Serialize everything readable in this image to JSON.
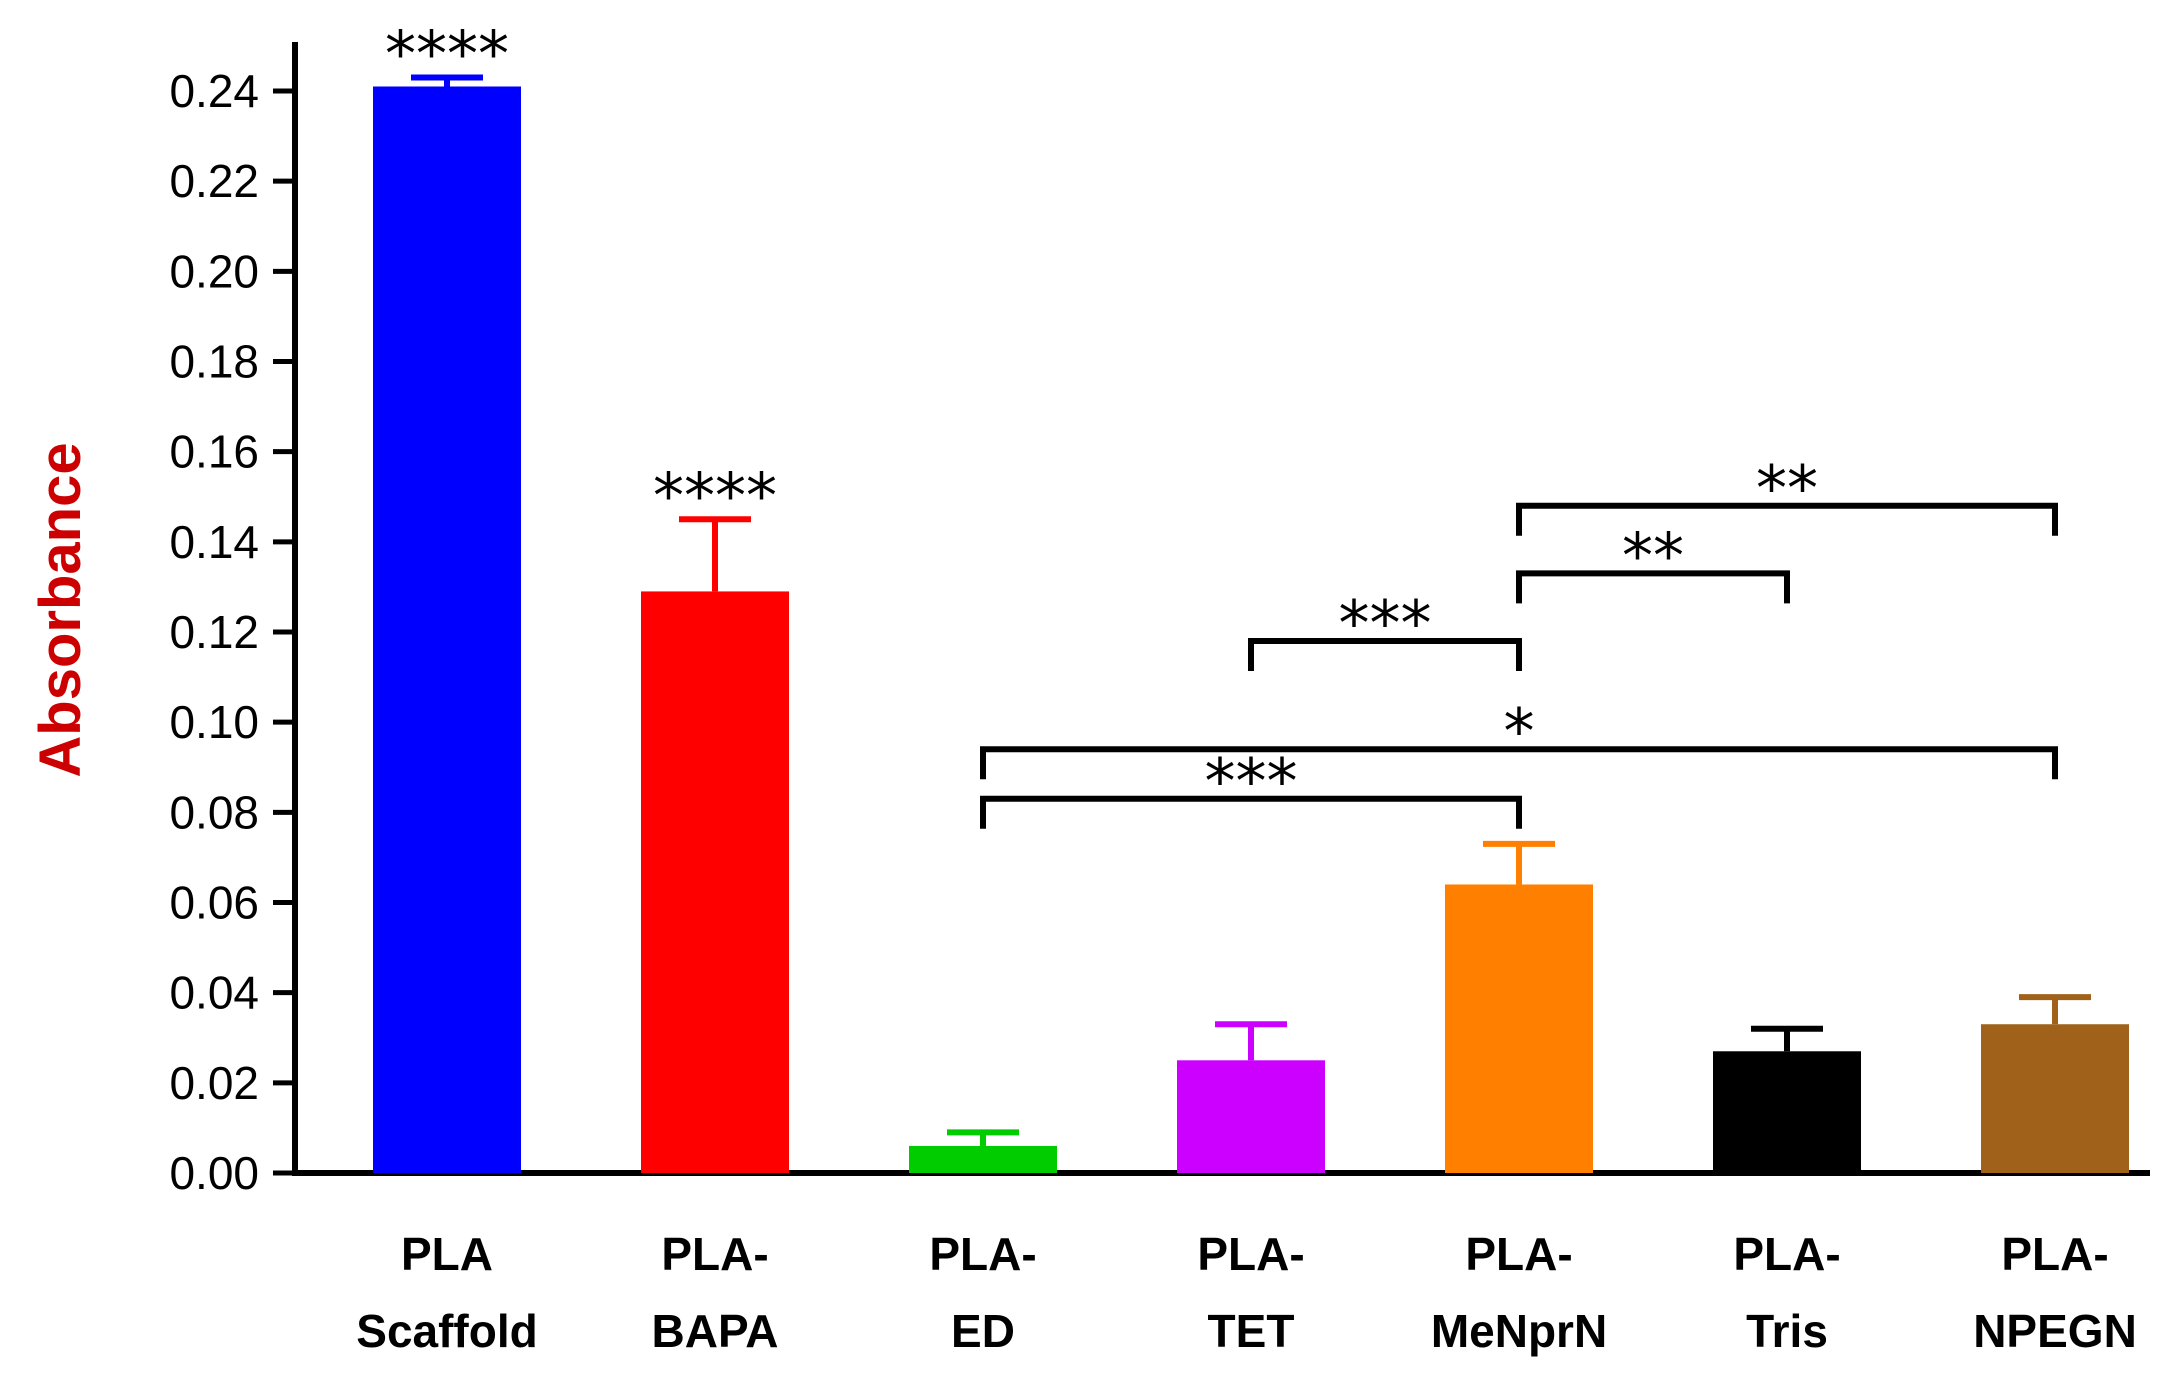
{
  "chart_data": {
    "type": "bar",
    "ylabel": "Absorbance",
    "ylabel_color": "#cc0000",
    "ylim": [
      0,
      0.25
    ],
    "yticks": [
      "0.00",
      "0.02",
      "0.04",
      "0.06",
      "0.08",
      "0.10",
      "0.12",
      "0.14",
      "0.16",
      "0.18",
      "0.20",
      "0.22",
      "0.24"
    ],
    "categories": [
      {
        "line1": "PLA",
        "line2": "Scaffold"
      },
      {
        "line1": "PLA-",
        "line2": "BAPA"
      },
      {
        "line1": "PLA-",
        "line2": "ED"
      },
      {
        "line1": "PLA-",
        "line2": "TET"
      },
      {
        "line1": "PLA-",
        "line2": "MeNprN"
      },
      {
        "line1": "PLA-",
        "line2": "Tris"
      },
      {
        "line1": "PLA-",
        "line2": "NPEGN"
      }
    ],
    "values": [
      0.241,
      0.129,
      0.006,
      0.025,
      0.064,
      0.027,
      0.033
    ],
    "errors": [
      0.002,
      0.016,
      0.003,
      0.008,
      0.009,
      0.005,
      0.006
    ],
    "colors": [
      "#0000ff",
      "#ff0000",
      "#00cc00",
      "#cc00ff",
      "#ff8000",
      "#000000",
      "#a0621b"
    ],
    "bar_annotations": [
      {
        "bar": 0,
        "text": "****"
      },
      {
        "bar": 1,
        "text": "****"
      }
    ],
    "comparisons": [
      {
        "from": 4,
        "to": 6,
        "y": 0.148,
        "text": "**"
      },
      {
        "from": 4,
        "to": 5,
        "y": 0.133,
        "text": "**"
      },
      {
        "from": 3,
        "to": 4,
        "y": 0.118,
        "text": "***"
      },
      {
        "from": 2,
        "to": 6,
        "y": 0.094,
        "text": "*"
      },
      {
        "from": 2,
        "to": 4,
        "y": 0.083,
        "text": "***"
      }
    ]
  }
}
